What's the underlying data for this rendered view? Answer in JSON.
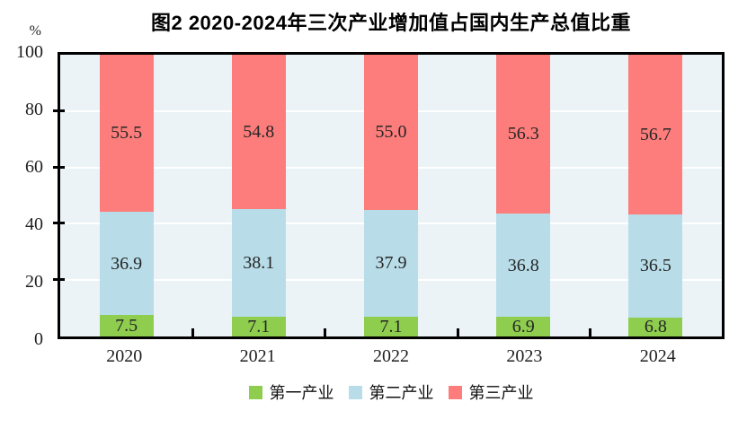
{
  "chart_data": {
    "type": "bar",
    "stacked": true,
    "title": "图2  2020-2024年三次产业增加值占国内生产总值比重",
    "ylabel": "%",
    "ylim": [
      0,
      100
    ],
    "yticks": [
      0,
      20,
      40,
      60,
      80,
      100
    ],
    "grid": true,
    "gridline_color": "#ffffff",
    "plot_background": "#ebf3f7",
    "legend_position": "bottom",
    "categories": [
      "2020",
      "2021",
      "2022",
      "2023",
      "2024"
    ],
    "series": [
      {
        "name": "第一产业",
        "color": "#8ecd4e",
        "values": [
          7.5,
          7.1,
          7.1,
          6.9,
          6.8
        ]
      },
      {
        "name": "第二产业",
        "color": "#b8dde9",
        "values": [
          36.9,
          38.1,
          37.9,
          36.8,
          36.5
        ]
      },
      {
        "name": "第三产业",
        "color": "#fc7d7b",
        "values": [
          55.5,
          54.8,
          55.0,
          56.3,
          56.7
        ]
      }
    ]
  }
}
